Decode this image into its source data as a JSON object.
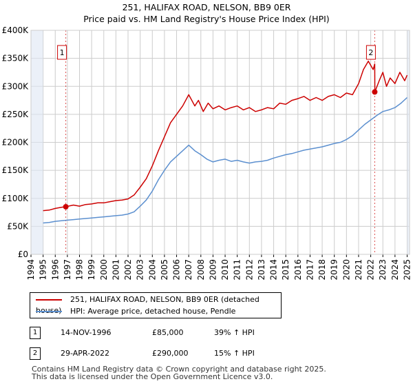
{
  "title_line1": "251, HALIFAX ROAD, NELSON, BB9 0ER",
  "title_line2": "Price paid vs. HM Land Registry's House Price Index (HPI)",
  "chart_data": {
    "type": "line",
    "title": "251, HALIFAX ROAD, NELSON, BB9 0ER — Price paid vs. HM Land Registry's House Price Index (HPI)",
    "xlabel": "",
    "ylabel": "",
    "xlim": [
      1994,
      2025.2
    ],
    "ylim": [
      0,
      400000
    ],
    "y_ticks": [
      {
        "value": 0,
        "label": "£0"
      },
      {
        "value": 50000,
        "label": "£50K"
      },
      {
        "value": 100000,
        "label": "£100K"
      },
      {
        "value": 150000,
        "label": "£150K"
      },
      {
        "value": 200000,
        "label": "£200K"
      },
      {
        "value": 250000,
        "label": "£250K"
      },
      {
        "value": 300000,
        "label": "£300K"
      },
      {
        "value": 350000,
        "label": "£350K"
      },
      {
        "value": 400000,
        "label": "£400K"
      }
    ],
    "x_ticks": [
      "1994",
      "1995",
      "1996",
      "1997",
      "1998",
      "1999",
      "2000",
      "2001",
      "2002",
      "2003",
      "2004",
      "2005",
      "2006",
      "2007",
      "2008",
      "2009",
      "2010",
      "2011",
      "2012",
      "2013",
      "2014",
      "2015",
      "2016",
      "2017",
      "2018",
      "2019",
      "2020",
      "2021",
      "2022",
      "2023",
      "2024",
      "2025"
    ],
    "grid": true,
    "colors": {
      "property": "#cc0000",
      "hpi": "#5b8fcf",
      "shade": "#dde6f4",
      "grid": "#cccccc"
    },
    "series": [
      {
        "name": "251, HALIFAX ROAD, NELSON, BB9 0ER (detached house)",
        "color": "#cc0000",
        "x": [
          1995.0,
          1995.5,
          1996.0,
          1996.5,
          1996.87,
          1997.5,
          1998.0,
          1998.5,
          1999.0,
          1999.5,
          2000.0,
          2000.5,
          2001.0,
          2001.5,
          2002.0,
          2002.5,
          2003.0,
          2003.5,
          2004.0,
          2004.5,
          2005.0,
          2005.5,
          2006.0,
          2006.5,
          2007.0,
          2007.5,
          2007.8,
          2008.2,
          2008.6,
          2009.0,
          2009.5,
          2010.0,
          2010.5,
          2011.0,
          2011.5,
          2012.0,
          2012.5,
          2013.0,
          2013.5,
          2014.0,
          2014.5,
          2015.0,
          2015.5,
          2016.0,
          2016.5,
          2017.0,
          2017.5,
          2018.0,
          2018.5,
          2019.0,
          2019.5,
          2020.0,
          2020.5,
          2021.0,
          2021.4,
          2021.8,
          2022.2,
          2022.33,
          2022.34,
          2022.7,
          2023.0,
          2023.3,
          2023.6,
          2024.0,
          2024.4,
          2024.8,
          2025.0
        ],
        "y": [
          78000,
          79000,
          82000,
          84000,
          85000,
          88000,
          86000,
          89000,
          90000,
          92000,
          92000,
          94000,
          96000,
          97000,
          99000,
          106000,
          120000,
          135000,
          158000,
          185000,
          210000,
          235000,
          250000,
          265000,
          285000,
          265000,
          275000,
          255000,
          270000,
          260000,
          265000,
          258000,
          262000,
          265000,
          258000,
          262000,
          255000,
          258000,
          262000,
          260000,
          270000,
          268000,
          275000,
          278000,
          282000,
          275000,
          280000,
          275000,
          282000,
          285000,
          280000,
          288000,
          285000,
          305000,
          330000,
          345000,
          330000,
          340000,
          290000,
          310000,
          325000,
          300000,
          315000,
          305000,
          325000,
          310000,
          320000
        ]
      },
      {
        "name": "HPI: Average price, detached house, Pendle",
        "color": "#5b8fcf",
        "x": [
          1995.0,
          1995.5,
          1996.0,
          1996.5,
          1997.0,
          1997.5,
          1998.0,
          1998.5,
          1999.0,
          1999.5,
          2000.0,
          2000.5,
          2001.0,
          2001.5,
          2002.0,
          2002.5,
          2003.0,
          2003.5,
          2004.0,
          2004.5,
          2005.0,
          2005.5,
          2006.0,
          2006.5,
          2007.0,
          2007.5,
          2008.0,
          2008.5,
          2009.0,
          2009.5,
          2010.0,
          2010.5,
          2011.0,
          2011.5,
          2012.0,
          2012.5,
          2013.0,
          2013.5,
          2014.0,
          2014.5,
          2015.0,
          2015.5,
          2016.0,
          2016.5,
          2017.0,
          2017.5,
          2018.0,
          2018.5,
          2019.0,
          2019.5,
          2020.0,
          2020.5,
          2021.0,
          2021.5,
          2022.0,
          2022.5,
          2023.0,
          2023.5,
          2024.0,
          2024.5,
          2025.0
        ],
        "y": [
          56000,
          57000,
          59000,
          60000,
          61000,
          62000,
          63000,
          64000,
          65000,
          66000,
          67000,
          68000,
          69000,
          70000,
          72000,
          76000,
          86000,
          97000,
          113000,
          133000,
          150000,
          165000,
          175000,
          185000,
          195000,
          185000,
          178000,
          170000,
          165000,
          168000,
          170000,
          166000,
          168000,
          165000,
          163000,
          165000,
          166000,
          168000,
          172000,
          175000,
          178000,
          180000,
          183000,
          186000,
          188000,
          190000,
          192000,
          195000,
          198000,
          200000,
          205000,
          212000,
          222000,
          232000,
          240000,
          248000,
          255000,
          258000,
          262000,
          270000,
          280000
        ]
      }
    ],
    "annotations": [
      {
        "label": "1",
        "x": 1996.87,
        "y": 85000
      },
      {
        "label": "2",
        "x": 2022.33,
        "y": 290000
      }
    ]
  },
  "legend": {
    "property_label": "251, HALIFAX ROAD, NELSON, BB9 0ER (detached house)",
    "hpi_label": "HPI: Average price, detached house, Pendle"
  },
  "transactions": [
    {
      "marker": "1",
      "date": "14-NOV-1996",
      "price": "£85,000",
      "change": "39% ↑ HPI"
    },
    {
      "marker": "2",
      "date": "29-APR-2022",
      "price": "£290,000",
      "change": "15% ↑ HPI"
    }
  ],
  "footer": {
    "line1": "Contains HM Land Registry data © Crown copyright and database right 2025.",
    "line2": "This data is licensed under the Open Government Licence v3.0."
  }
}
